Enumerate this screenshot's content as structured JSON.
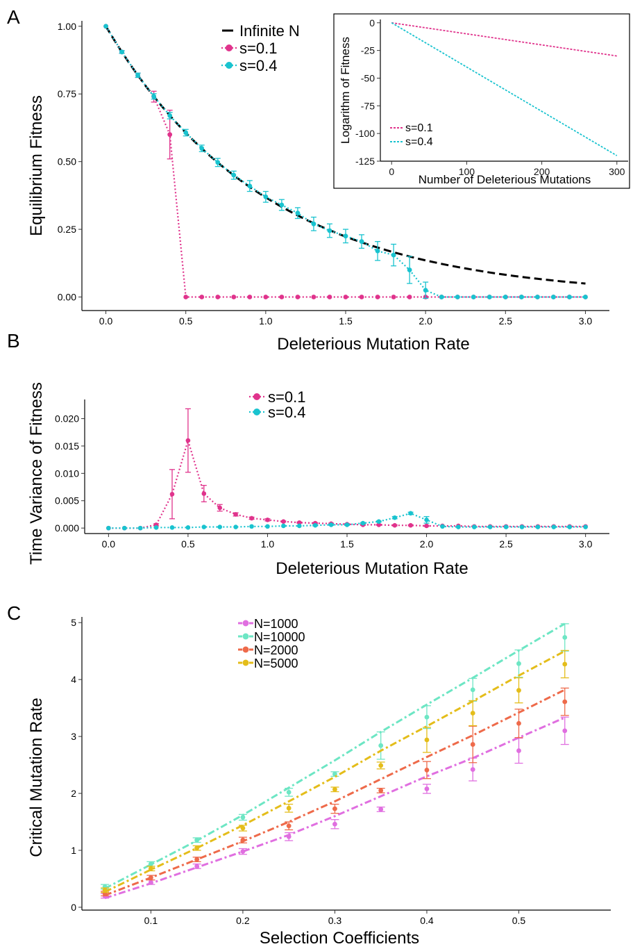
{
  "colors": {
    "pink": "#e0338c",
    "cyan": "#19c3cf",
    "black": "#000000",
    "n1000": "#e06fe0",
    "n10000": "#6de6c4",
    "n2000": "#ee6a4a",
    "n5000": "#e4bd1a"
  },
  "panels": {
    "A": "A",
    "B": "B",
    "C": "C"
  },
  "chart_data": [
    {
      "id": "A",
      "type": "line",
      "xlabel": "Deleterious Mutation Rate",
      "ylabel": "Equilibrium Fitness",
      "xlim": [
        -0.15,
        3.15
      ],
      "ylim": [
        -0.05,
        1.02
      ],
      "xticks": [
        0.0,
        0.5,
        1.0,
        1.5,
        2.0,
        2.5,
        3.0
      ],
      "xtick_labels": [
        "0.0",
        "0.5",
        "1.0",
        "1.5",
        "2.0",
        "2.5",
        "3.0"
      ],
      "yticks": [
        0.0,
        0.25,
        0.5,
        0.75,
        1.0
      ],
      "ytick_labels": [
        "0.00",
        "0.25",
        "0.50",
        "0.75",
        "1.00"
      ],
      "legend": [
        "Infinite N",
        "s=0.1",
        "s=0.4"
      ],
      "legend_position": "top-center",
      "series": [
        {
          "name": "Infinite N",
          "style": "dashed",
          "color": "black",
          "func": "exp_neg",
          "x_range": [
            0,
            3.0
          ]
        },
        {
          "name": "s=0.1",
          "color": "pink",
          "x": [
            0.0,
            0.1,
            0.2,
            0.3,
            0.4,
            0.5,
            0.6,
            0.7,
            0.8,
            0.9,
            1.0,
            1.1,
            1.2,
            1.3,
            1.4,
            1.5,
            1.6,
            1.7,
            1.8,
            1.9,
            2.0,
            2.1,
            2.2,
            2.3,
            2.4,
            2.5,
            2.6,
            2.7,
            2.8,
            2.9,
            3.0
          ],
          "y": [
            1.0,
            0.905,
            0.819,
            0.74,
            0.6,
            0,
            0,
            0,
            0,
            0,
            0,
            0,
            0,
            0,
            0,
            0,
            0,
            0,
            0,
            0,
            0,
            0,
            0,
            0,
            0,
            0,
            0,
            0,
            0,
            0,
            0
          ],
          "err": [
            0,
            0.005,
            0.008,
            0.02,
            0.09,
            0,
            0,
            0,
            0,
            0,
            0,
            0,
            0,
            0,
            0,
            0,
            0,
            0,
            0,
            0,
            0,
            0,
            0,
            0,
            0,
            0,
            0,
            0,
            0,
            0,
            0
          ]
        },
        {
          "name": "s=0.4",
          "color": "cyan",
          "x": [
            0.0,
            0.1,
            0.2,
            0.3,
            0.4,
            0.5,
            0.6,
            0.7,
            0.8,
            0.9,
            1.0,
            1.1,
            1.2,
            1.3,
            1.4,
            1.5,
            1.6,
            1.7,
            1.8,
            1.9,
            2.0,
            2.1,
            2.2,
            2.3,
            2.4,
            2.5,
            2.6,
            2.7,
            2.8,
            2.9,
            3.0
          ],
          "y": [
            1.0,
            0.905,
            0.819,
            0.741,
            0.67,
            0.607,
            0.549,
            0.497,
            0.45,
            0.41,
            0.37,
            0.34,
            0.31,
            0.27,
            0.245,
            0.225,
            0.205,
            0.17,
            0.155,
            0.1,
            0.025,
            0,
            0,
            0,
            0,
            0,
            0,
            0,
            0,
            0,
            0
          ],
          "err": [
            0,
            0.005,
            0.008,
            0.01,
            0.012,
            0.012,
            0.012,
            0.015,
            0.015,
            0.02,
            0.02,
            0.02,
            0.02,
            0.025,
            0.025,
            0.025,
            0.025,
            0.035,
            0.04,
            0.05,
            0.03,
            0,
            0,
            0,
            0,
            0,
            0,
            0,
            0,
            0,
            0
          ]
        }
      ]
    },
    {
      "id": "A-inset",
      "type": "line",
      "xlabel": "Number of Deleterious Mutations",
      "ylabel": "Logarithm of Fitness",
      "xlim": [
        -15,
        315
      ],
      "ylim": [
        -125,
        3
      ],
      "xticks": [
        0,
        100,
        200,
        300
      ],
      "xtick_labels": [
        "0",
        "100",
        "200",
        "300"
      ],
      "yticks": [
        0,
        -25,
        -50,
        -75,
        -100,
        -125
      ],
      "ytick_labels": [
        "0",
        "-25",
        "-50",
        "-75",
        "-100",
        "-125"
      ],
      "legend": [
        "s=0.1",
        "s=0.4"
      ],
      "legend_position": "bottom-left",
      "series": [
        {
          "name": "s=0.1",
          "color": "pink",
          "x": [
            0,
            300
          ],
          "y": [
            0,
            -30
          ]
        },
        {
          "name": "s=0.4",
          "color": "cyan",
          "x": [
            0,
            300
          ],
          "y": [
            0,
            -120
          ]
        }
      ]
    },
    {
      "id": "B",
      "type": "line",
      "xlabel": "Deleterious Mutation Rate",
      "ylabel": "Time Variance of Fitness",
      "xlim": [
        -0.15,
        3.15
      ],
      "ylim": [
        -0.001,
        0.0235
      ],
      "xticks": [
        0.0,
        0.5,
        1.0,
        1.5,
        2.0,
        2.5,
        3.0
      ],
      "xtick_labels": [
        "0.0",
        "0.5",
        "1.0",
        "1.5",
        "2.0",
        "2.5",
        "3.0"
      ],
      "yticks": [
        0.0,
        0.005,
        0.01,
        0.015,
        0.02
      ],
      "ytick_labels": [
        "0.000",
        "0.005",
        "0.010",
        "0.015",
        "0.020"
      ],
      "legend": [
        "s=0.1",
        "s=0.4"
      ],
      "legend_position": "top-center",
      "series": [
        {
          "name": "s=0.1",
          "color": "pink",
          "x": [
            0.0,
            0.1,
            0.2,
            0.3,
            0.4,
            0.5,
            0.6,
            0.7,
            0.8,
            0.9,
            1.0,
            1.1,
            1.2,
            1.3,
            1.4,
            1.5,
            1.6,
            1.7,
            1.8,
            1.9,
            2.0,
            2.1,
            2.2,
            2.3,
            2.4,
            2.5,
            2.6,
            2.7,
            2.8,
            2.9,
            3.0
          ],
          "y": [
            0.0,
            0.0,
            0.0,
            0.0006,
            0.0062,
            0.016,
            0.0063,
            0.0037,
            0.0025,
            0.0018,
            0.0015,
            0.0012,
            0.001,
            0.0009,
            0.0008,
            0.0007,
            0.0006,
            0.0006,
            0.0005,
            0.0005,
            0.0004,
            0.0004,
            0.0004,
            0.0003,
            0.0003,
            0.0003,
            0.0003,
            0.0003,
            0.0003,
            0.0003,
            0.0003
          ],
          "err": [
            0,
            0,
            0,
            0.0002,
            0.0045,
            0.0058,
            0.0015,
            0.0006,
            0.0003,
            0.0002,
            0.0002,
            0.0001,
            0.0001,
            0.0001,
            0.0001,
            0.0001,
            0.0001,
            0.0001,
            0.0001,
            0.0001,
            0.0001,
            0,
            0,
            0,
            0,
            0,
            0,
            0,
            0,
            0,
            0
          ]
        },
        {
          "name": "s=0.4",
          "color": "cyan",
          "x": [
            0.0,
            0.1,
            0.2,
            0.3,
            0.4,
            0.5,
            0.6,
            0.7,
            0.8,
            0.9,
            1.0,
            1.1,
            1.2,
            1.3,
            1.4,
            1.5,
            1.6,
            1.7,
            1.8,
            1.9,
            2.0,
            2.1,
            2.2,
            2.3,
            2.4,
            2.5,
            2.6,
            2.7,
            2.8,
            2.9,
            3.0
          ],
          "y": [
            0.0,
            0.0,
            0.0,
            0.0001,
            0.0001,
            0.0001,
            0.0002,
            0.0002,
            0.0002,
            0.0003,
            0.0003,
            0.0004,
            0.0004,
            0.0005,
            0.0006,
            0.0006,
            0.0009,
            0.0012,
            0.0019,
            0.0027,
            0.0015,
            0.0003,
            0.0002,
            0.0002,
            0.0002,
            0.0002,
            0.0002,
            0.0002,
            0.0002,
            0.0002,
            0.0002
          ],
          "err": [
            0,
            0,
            0,
            0,
            0,
            0,
            0,
            0,
            0,
            0,
            0,
            0,
            0,
            0.0001,
            0.0001,
            0.0001,
            0.0001,
            0.0001,
            0.0002,
            0.0002,
            0.0006,
            0,
            0,
            0,
            0,
            0,
            0,
            0,
            0,
            0,
            0
          ]
        }
      ]
    },
    {
      "id": "C",
      "type": "line",
      "xlabel": "Selection Coefficients",
      "ylabel": "Critical Mutation Rate",
      "xlim": [
        0.025,
        0.6
      ],
      "ylim": [
        -0.05,
        5.1
      ],
      "xticks": [
        0.1,
        0.2,
        0.3,
        0.4,
        0.5
      ],
      "xtick_labels": [
        "0.1",
        "0.2",
        "0.3",
        "0.4",
        "0.5"
      ],
      "yticks": [
        0,
        1,
        2,
        3,
        4,
        5
      ],
      "ytick_labels": [
        "0",
        "1",
        "2",
        "3",
        "4",
        "5"
      ],
      "legend": [
        "N=1000",
        "N=10000",
        "N=2000",
        "N=5000"
      ],
      "legend_position": "top-left",
      "x": [
        0.05,
        0.1,
        0.15,
        0.2,
        0.25,
        0.3,
        0.35,
        0.4,
        0.45,
        0.5,
        0.55
      ],
      "series": [
        {
          "name": "N=1000",
          "color": "n1000",
          "points": [
            0.2,
            0.44,
            0.72,
            0.98,
            1.24,
            1.46,
            1.72,
            2.08,
            2.42,
            2.75,
            3.1
          ],
          "err": [
            0.04,
            0.04,
            0.04,
            0.05,
            0.07,
            0.08,
            0.04,
            0.08,
            0.2,
            0.22,
            0.24
          ],
          "line": [
            0.16,
            0.42,
            0.7,
            0.98,
            1.27,
            1.6,
            1.95,
            2.3,
            2.62,
            2.98,
            3.33
          ]
        },
        {
          "name": "N=10000",
          "color": "n10000",
          "points": [
            0.36,
            0.76,
            1.18,
            1.58,
            2.02,
            2.34,
            2.84,
            3.34,
            3.82,
            4.28,
            4.74
          ],
          "err": [
            0.04,
            0.04,
            0.04,
            0.05,
            0.07,
            0.04,
            0.24,
            0.2,
            0.2,
            0.24,
            0.24
          ],
          "line": [
            0.33,
            0.75,
            1.17,
            1.62,
            2.1,
            2.58,
            3.08,
            3.56,
            4.03,
            4.51,
            4.98
          ]
        },
        {
          "name": "N=2000",
          "color": "n2000",
          "points": [
            0.24,
            0.52,
            0.84,
            1.18,
            1.43,
            1.73,
            2.05,
            2.41,
            2.86,
            3.23,
            3.61
          ],
          "err": [
            0.04,
            0.04,
            0.04,
            0.05,
            0.07,
            0.08,
            0.04,
            0.15,
            0.32,
            0.25,
            0.24
          ],
          "line": [
            0.21,
            0.52,
            0.84,
            1.16,
            1.5,
            1.86,
            2.25,
            2.64,
            3.02,
            3.42,
            3.82
          ]
        },
        {
          "name": "N=5000",
          "color": "n5000",
          "points": [
            0.3,
            0.68,
            1.04,
            1.39,
            1.74,
            2.07,
            2.49,
            2.94,
            3.41,
            3.81,
            4.27
          ],
          "err": [
            0.04,
            0.04,
            0.04,
            0.05,
            0.07,
            0.04,
            0.06,
            0.22,
            0.22,
            0.22,
            0.24
          ],
          "line": [
            0.27,
            0.66,
            1.04,
            1.44,
            1.86,
            2.29,
            2.75,
            3.18,
            3.62,
            4.07,
            4.5
          ]
        }
      ]
    }
  ]
}
